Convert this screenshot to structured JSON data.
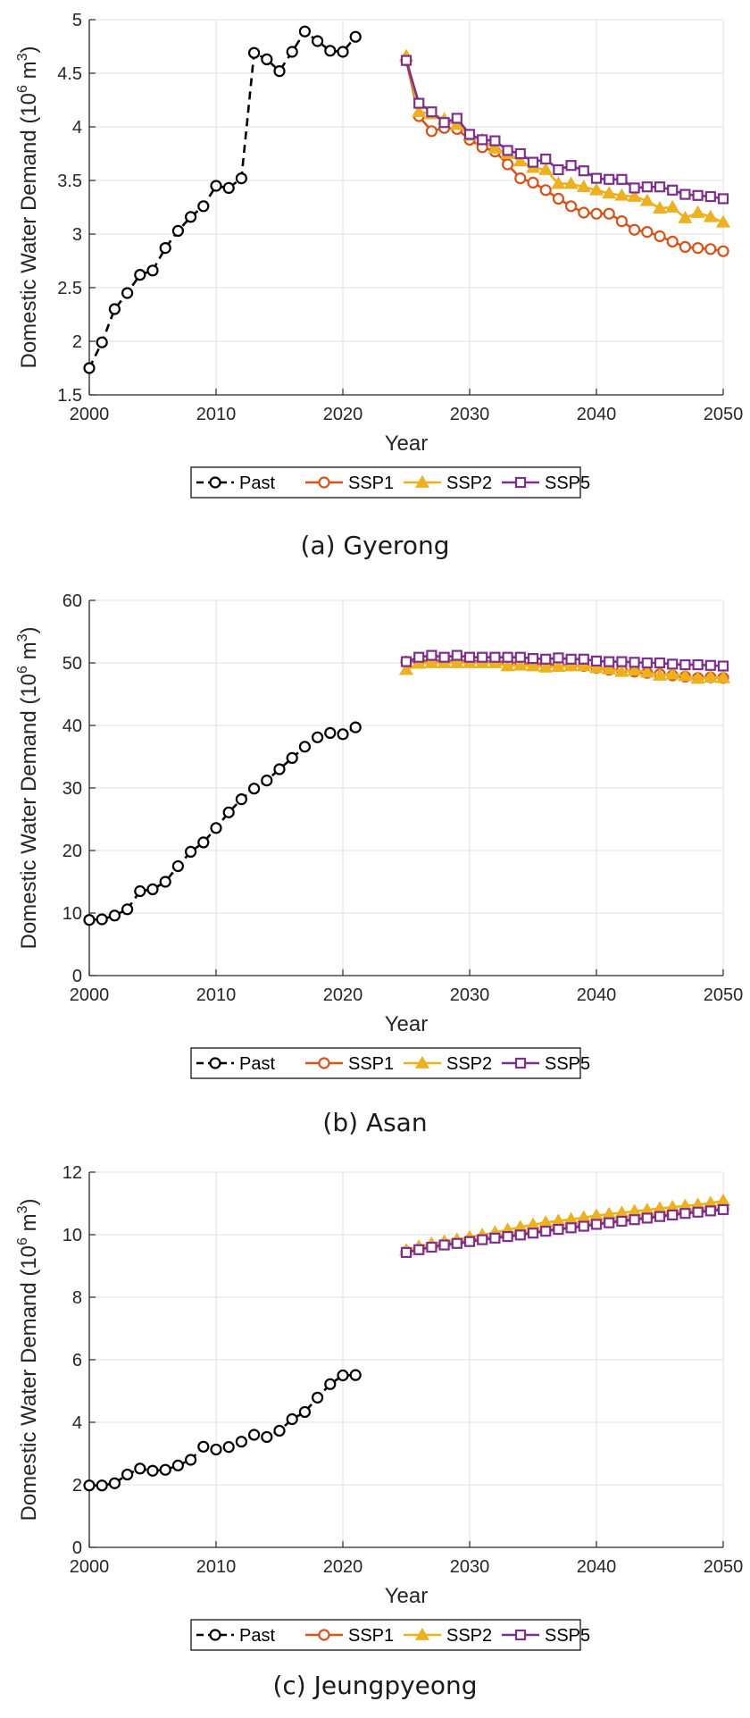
{
  "legend_labels": [
    "Past",
    "SSP1",
    "SSP2",
    "SSP5"
  ],
  "colors": {
    "Past": "#000000",
    "SSP1": "#D95319",
    "SSP2": "#EDB120",
    "SSP5": "#7E2F8E",
    "grid": "#e0e0e0",
    "axis": "#262626"
  },
  "chart_data": [
    {
      "type": "line",
      "caption": "(a) Gyerong",
      "xlabel": "Year",
      "ylabel": "Domestic Water Demand (10^6 m^3)",
      "xlim": [
        2000,
        2050
      ],
      "ylim": [
        1.5,
        5
      ],
      "xticks": [
        2000,
        2010,
        2020,
        2030,
        2040,
        2050
      ],
      "yticks": [
        1.5,
        2,
        2.5,
        3,
        3.5,
        4,
        4.5,
        5
      ],
      "grid": true,
      "legend_position": "bottom",
      "series": [
        {
          "name": "Past",
          "x": [
            2000,
            2001,
            2002,
            2003,
            2004,
            2005,
            2006,
            2007,
            2008,
            2009,
            2010,
            2011,
            2012,
            2013,
            2014,
            2015,
            2016,
            2017,
            2018,
            2019,
            2020,
            2021
          ],
          "values": [
            1.75,
            1.99,
            2.3,
            2.45,
            2.62,
            2.66,
            2.87,
            3.03,
            3.16,
            3.26,
            3.45,
            3.43,
            3.52,
            4.69,
            4.63,
            4.52,
            4.7,
            4.89,
            4.8,
            4.71,
            4.7,
            4.84
          ]
        },
        {
          "name": "SSP1",
          "x": [
            2025,
            2026,
            2027,
            2028,
            2029,
            2030,
            2031,
            2032,
            2033,
            2034,
            2035,
            2036,
            2037,
            2038,
            2039,
            2040,
            2041,
            2042,
            2043,
            2044,
            2045,
            2046,
            2047,
            2048,
            2049,
            2050
          ],
          "values": [
            4.62,
            4.1,
            3.96,
            3.99,
            3.98,
            3.88,
            3.81,
            3.77,
            3.65,
            3.52,
            3.48,
            3.41,
            3.33,
            3.26,
            3.2,
            3.19,
            3.19,
            3.12,
            3.04,
            3.02,
            2.98,
            2.93,
            2.88,
            2.87,
            2.86,
            2.84
          ]
        },
        {
          "name": "SSP2",
          "x": [
            2025,
            2026,
            2027,
            2028,
            2029,
            2030,
            2031,
            2032,
            2033,
            2034,
            2035,
            2036,
            2037,
            2038,
            2039,
            2040,
            2041,
            2042,
            2043,
            2044,
            2045,
            2046,
            2047,
            2048,
            2049,
            2050
          ],
          "values": [
            4.66,
            4.14,
            4.12,
            4.07,
            4.02,
            3.92,
            3.88,
            3.8,
            3.75,
            3.68,
            3.62,
            3.6,
            3.47,
            3.47,
            3.44,
            3.41,
            3.38,
            3.36,
            3.35,
            3.31,
            3.24,
            3.25,
            3.15,
            3.2,
            3.16,
            3.11
          ]
        },
        {
          "name": "SSP5",
          "x": [
            2025,
            2026,
            2027,
            2028,
            2029,
            2030,
            2031,
            2032,
            2033,
            2034,
            2035,
            2036,
            2037,
            2038,
            2039,
            2040,
            2041,
            2042,
            2043,
            2044,
            2045,
            2046,
            2047,
            2048,
            2049,
            2050
          ],
          "values": [
            4.62,
            4.22,
            4.14,
            4.04,
            4.08,
            3.93,
            3.88,
            3.87,
            3.78,
            3.75,
            3.67,
            3.7,
            3.6,
            3.64,
            3.59,
            3.52,
            3.51,
            3.51,
            3.43,
            3.44,
            3.44,
            3.41,
            3.37,
            3.36,
            3.35,
            3.33
          ]
        }
      ]
    },
    {
      "type": "line",
      "caption": "(b) Asan",
      "xlabel": "Year",
      "ylabel": "Domestic Water Demand (10^6 m^3)",
      "xlim": [
        2000,
        2050
      ],
      "ylim": [
        0,
        60
      ],
      "xticks": [
        2000,
        2010,
        2020,
        2030,
        2040,
        2050
      ],
      "yticks": [
        0,
        10,
        20,
        30,
        40,
        50,
        60
      ],
      "grid": true,
      "legend_position": "bottom",
      "series": [
        {
          "name": "Past",
          "x": [
            2000,
            2001,
            2002,
            2003,
            2004,
            2005,
            2006,
            2007,
            2008,
            2009,
            2010,
            2011,
            2012,
            2013,
            2014,
            2015,
            2016,
            2017,
            2018,
            2019,
            2020,
            2021
          ],
          "values": [
            8.9,
            9.0,
            9.6,
            10.6,
            13.5,
            13.8,
            15.0,
            17.5,
            19.8,
            21.3,
            23.6,
            26.1,
            28.2,
            29.9,
            31.2,
            33.0,
            34.8,
            36.6,
            38.1,
            38.8,
            38.6,
            39.7
          ]
        },
        {
          "name": "SSP1",
          "x": [
            2025,
            2026,
            2027,
            2028,
            2029,
            2030,
            2031,
            2032,
            2033,
            2034,
            2035,
            2036,
            2037,
            2038,
            2039,
            2040,
            2041,
            2042,
            2043,
            2044,
            2045,
            2046,
            2047,
            2048,
            2049,
            2050
          ],
          "values": [
            50.2,
            50.3,
            50.4,
            50.3,
            50.4,
            50.3,
            50.2,
            50.2,
            50.1,
            50.0,
            49.9,
            49.8,
            49.7,
            49.6,
            49.5,
            49.2,
            48.9,
            48.8,
            48.6,
            48.4,
            48.2,
            48.0,
            47.8,
            47.6,
            47.7,
            47.6
          ]
        },
        {
          "name": "SSP2",
          "x": [
            2025,
            2026,
            2027,
            2028,
            2029,
            2030,
            2031,
            2032,
            2033,
            2034,
            2035,
            2036,
            2037,
            2038,
            2039,
            2040,
            2041,
            2042,
            2043,
            2044,
            2045,
            2046,
            2047,
            2048,
            2049,
            2050
          ],
          "values": [
            48.9,
            49.9,
            50.0,
            50.0,
            50.0,
            50.0,
            50.0,
            50.0,
            49.5,
            49.6,
            49.5,
            49.3,
            49.4,
            49.5,
            49.5,
            49.2,
            49.0,
            48.6,
            48.8,
            48.5,
            48.0,
            48.2,
            47.9,
            47.5,
            47.7,
            47.6
          ]
        },
        {
          "name": "SSP5",
          "x": [
            2025,
            2026,
            2027,
            2028,
            2029,
            2030,
            2031,
            2032,
            2033,
            2034,
            2035,
            2036,
            2037,
            2038,
            2039,
            2040,
            2041,
            2042,
            2043,
            2044,
            2045,
            2046,
            2047,
            2048,
            2049,
            2050
          ],
          "values": [
            50.2,
            50.9,
            51.2,
            50.9,
            51.2,
            50.9,
            50.9,
            50.9,
            50.9,
            50.9,
            50.7,
            50.6,
            50.8,
            50.6,
            50.6,
            50.3,
            50.2,
            50.2,
            50.1,
            50.0,
            50.0,
            49.8,
            49.7,
            49.7,
            49.6,
            49.5
          ]
        }
      ]
    },
    {
      "type": "line",
      "caption": "(c) Jeungpyeong",
      "xlabel": "Year",
      "ylabel": "Domestic Water Demand (10^6 m^3)",
      "xlim": [
        2000,
        2050
      ],
      "ylim": [
        0,
        12
      ],
      "xticks": [
        2000,
        2010,
        2020,
        2030,
        2040,
        2050
      ],
      "yticks": [
        0,
        2,
        4,
        6,
        8,
        10,
        12
      ],
      "grid": true,
      "legend_position": "bottom",
      "series": [
        {
          "name": "Past",
          "x": [
            2000,
            2001,
            2002,
            2003,
            2004,
            2005,
            2006,
            2007,
            2008,
            2009,
            2010,
            2011,
            2012,
            2013,
            2014,
            2015,
            2016,
            2017,
            2018,
            2019,
            2020,
            2021
          ],
          "values": [
            1.98,
            1.98,
            2.05,
            2.33,
            2.52,
            2.45,
            2.48,
            2.62,
            2.8,
            3.22,
            3.13,
            3.21,
            3.38,
            3.6,
            3.53,
            3.73,
            4.1,
            4.33,
            4.79,
            5.22,
            5.5,
            5.51
          ]
        },
        {
          "name": "SSP1",
          "x": [
            2025,
            2026,
            2027,
            2028,
            2029,
            2030,
            2031,
            2032,
            2033,
            2034,
            2035,
            2036,
            2037,
            2038,
            2039,
            2040,
            2041,
            2042,
            2043,
            2044,
            2045,
            2046,
            2047,
            2048,
            2049,
            2050
          ],
          "values": [
            9.45,
            9.53,
            9.62,
            9.7,
            9.75,
            9.82,
            9.88,
            9.93,
            9.98,
            10.03,
            10.08,
            10.13,
            10.18,
            10.23,
            10.29,
            10.35,
            10.4,
            10.45,
            10.5,
            10.55,
            10.6,
            10.65,
            10.7,
            10.74,
            10.78,
            10.82
          ]
        },
        {
          "name": "SSP2",
          "x": [
            2025,
            2026,
            2027,
            2028,
            2029,
            2030,
            2031,
            2032,
            2033,
            2034,
            2035,
            2036,
            2037,
            2038,
            2039,
            2040,
            2041,
            2042,
            2043,
            2044,
            2045,
            2046,
            2047,
            2048,
            2049,
            2050
          ],
          "values": [
            9.5,
            9.62,
            9.71,
            9.78,
            9.84,
            9.92,
            9.99,
            10.07,
            10.16,
            10.24,
            10.32,
            10.39,
            10.44,
            10.49,
            10.55,
            10.61,
            10.66,
            10.7,
            10.75,
            10.79,
            10.84,
            10.88,
            10.92,
            10.96,
            11.01,
            11.08
          ]
        },
        {
          "name": "SSP5",
          "x": [
            2025,
            2026,
            2027,
            2028,
            2029,
            2030,
            2031,
            2032,
            2033,
            2034,
            2035,
            2036,
            2037,
            2038,
            2039,
            2040,
            2041,
            2042,
            2043,
            2044,
            2045,
            2046,
            2047,
            2048,
            2049,
            2050
          ],
          "values": [
            9.43,
            9.52,
            9.6,
            9.67,
            9.72,
            9.78,
            9.84,
            9.89,
            9.94,
            9.99,
            10.05,
            10.11,
            10.17,
            10.22,
            10.27,
            10.33,
            10.38,
            10.43,
            10.48,
            10.53,
            10.58,
            10.63,
            10.68,
            10.72,
            10.76,
            10.8
          ]
        }
      ]
    }
  ]
}
